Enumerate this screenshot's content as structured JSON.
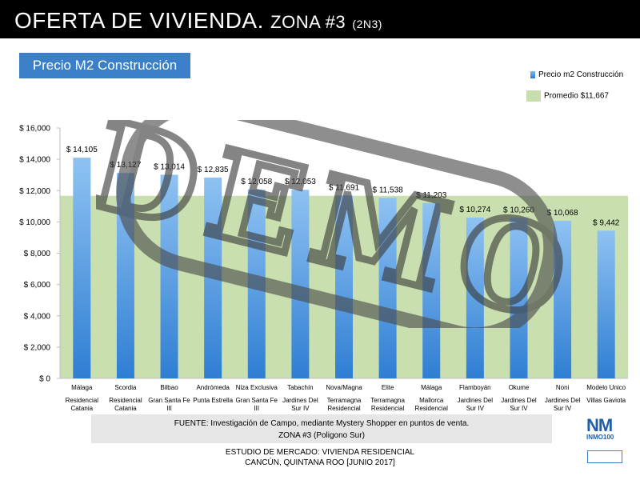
{
  "header": {
    "title_main": "OFERTA DE VIVIENDA.",
    "title_zona": "ZONA #3",
    "title_code": "(2N3)"
  },
  "section_label": "Precio M2 Construcción",
  "legend": {
    "bar_label": "Precio m2 Construcción",
    "avg_label": "Promedio $11,667"
  },
  "colors": {
    "bar_top": "#8fc2f2",
    "bar_bottom": "#2f7ed3",
    "avg_fill": "#c9dfb0",
    "header_bg": "#000000",
    "accent": "#3a7fc7"
  },
  "chart_data": {
    "type": "bar",
    "categories": [
      {
        "line1": "Málaga",
        "line2": "Residencial Catania"
      },
      {
        "line1": "Scordia",
        "line2": "Residencial Catania"
      },
      {
        "line1": "Bilbao",
        "line2": "Gran Santa Fe III"
      },
      {
        "line1": "Andrómeda",
        "line2": "Punta Estrella"
      },
      {
        "line1": "Niza Exclusiva",
        "line2": "Gran Santa Fe III"
      },
      {
        "line1": "Tabachín",
        "line2": "Jardines Del Sur IV"
      },
      {
        "line1": "Nova/Magna",
        "line2": "Terramagna Residencial"
      },
      {
        "line1": "Elite",
        "line2": "Terramagna Residencial"
      },
      {
        "line1": "Málaga",
        "line2": "Mallorca Residencial"
      },
      {
        "line1": "Flamboyán",
        "line2": "Jardines Del Sur IV"
      },
      {
        "line1": "Okume",
        "line2": "Jardines Del Sur IV"
      },
      {
        "line1": "Noni",
        "line2": "Jardines Del Sur IV"
      },
      {
        "line1": "Modelo Unico",
        "line2": "Villas Gaviota"
      }
    ],
    "values": [
      14105,
      13127,
      13014,
      12835,
      12058,
      12053,
      11691,
      11538,
      11203,
      10274,
      10260,
      10068,
      9442
    ],
    "value_labels": [
      "$ 14,105",
      "$ 13,127",
      "$ 13,014",
      "$ 12,835",
      "$ 12,058",
      "$ 12,053",
      "$ 11,691",
      "$ 11,538",
      "$ 11,203",
      "$ 10,274",
      "$ 10,260",
      "$ 10,068",
      "$ 9,442"
    ],
    "average": 11667,
    "ylim": [
      0,
      16000
    ],
    "yticks": [
      0,
      2000,
      4000,
      6000,
      8000,
      10000,
      12000,
      14000,
      16000
    ],
    "ytick_labels": [
      "$ 0",
      "$ 2,000",
      "$ 4,000",
      "$ 6,000",
      "$ 8,000",
      "$ 10,000",
      "$ 12,000",
      "$ 14,000",
      "$ 16,000"
    ],
    "grid": false,
    "legend_position": "top-right"
  },
  "source": {
    "line1": "FUENTE: Investigación de Campo, mediante Mystery Shopper en puntos de venta.",
    "line2": "ZONA #3 (Poligono Sur)"
  },
  "study": {
    "line1": "ESTUDIO DE MERCADO: VIVIENDA RESIDENCIAL",
    "line2": "CANCÚN, QUINTANA ROO [JUNIO 2017]"
  },
  "logo": {
    "mark": "NM",
    "brand": "INMO100"
  },
  "watermark_text": "DEMO"
}
